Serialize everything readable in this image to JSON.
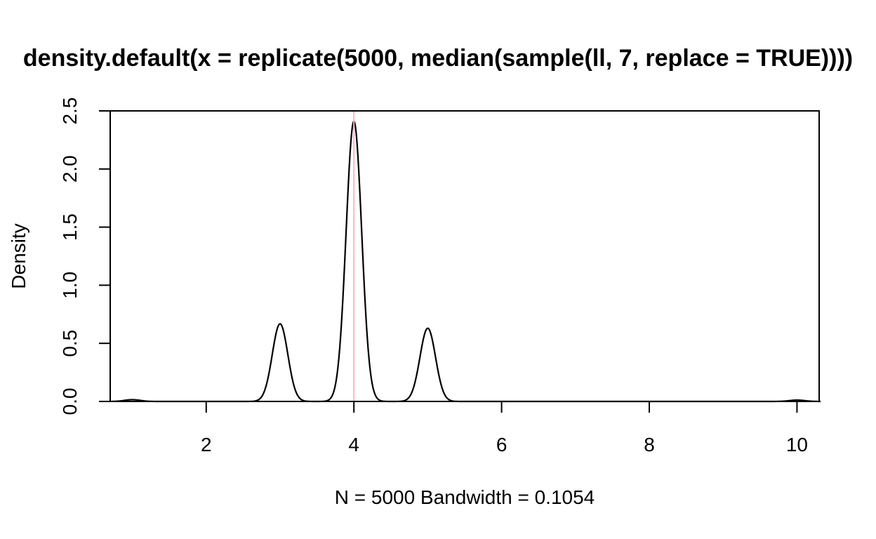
{
  "chart_data": {
    "type": "line",
    "title": "density.default(x = replicate(5000, median(sample(ll, 7, replace = TRUE))))",
    "xlabel": "N = 5000   Bandwidth = 0.1054",
    "ylabel": "Density",
    "xlim": [
      0.7,
      10.3
    ],
    "ylim": [
      0,
      2.5
    ],
    "xticks": [
      2,
      4,
      6,
      8,
      10
    ],
    "xtick_labels": [
      "2",
      "4",
      "6",
      "8",
      "10"
    ],
    "yticks": [
      0,
      0.5,
      1,
      1.5,
      2,
      2.5
    ],
    "ytick_labels": [
      "0.0",
      "0.5",
      "1.0",
      "1.5",
      "2.0",
      "2.5"
    ],
    "grid": false,
    "series": [
      {
        "color": "#000000",
        "components": [
          {
            "mean": 1.0,
            "weight": 0.004
          },
          {
            "mean": 3.0,
            "weight": 0.1765
          },
          {
            "mean": 4.0,
            "weight": 0.637
          },
          {
            "mean": 5.0,
            "weight": 0.1665
          },
          {
            "mean": 10.0,
            "weight": 0.003
          }
        ],
        "bandwidth": 0.1054,
        "x_range": [
          0.68,
          10.32
        ],
        "peaks": [
          {
            "x": 3,
            "y": 0.67
          },
          {
            "x": 4,
            "y": 2.41
          },
          {
            "x": 5,
            "y": 0.63
          }
        ]
      }
    ],
    "reference_lines": [
      {
        "orientation": "vertical",
        "x": 4.0,
        "color": "#ffb6c1"
      },
      {
        "orientation": "horizontal",
        "y": 0.0,
        "color": "#dddddd"
      }
    ]
  }
}
